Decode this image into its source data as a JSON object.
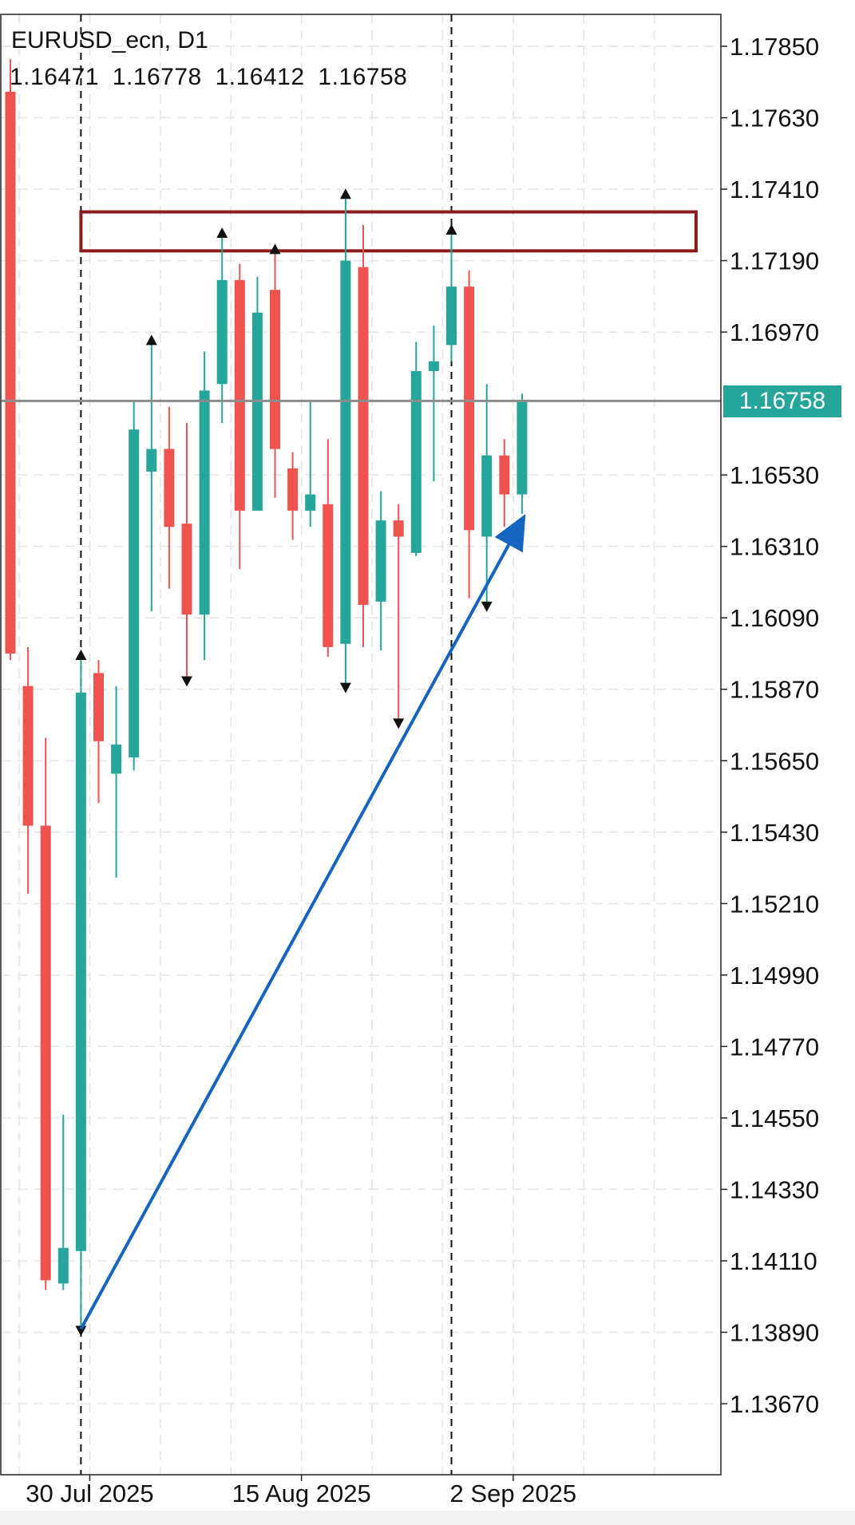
{
  "header": {
    "symbol_title": "EURUSD_ecn, D1",
    "ohlc": [
      "1.16471",
      "1.16778",
      "1.16412",
      "1.16758"
    ]
  },
  "current_price": "1.16758",
  "colors": {
    "bull": "#26a69a",
    "bear": "#ef5350",
    "price_line": "#8c8c8c",
    "zone": "#8b1a1a",
    "arrow": "#1565c0",
    "grid": "#e4e4e4",
    "marker": "#111111"
  },
  "chart_data": {
    "type": "candlestick",
    "title": "EURUSD_ecn, D1",
    "y_ticks": [
      "1.17850",
      "1.17630",
      "1.17410",
      "1.17190",
      "1.16970",
      "1.16530",
      "1.16310",
      "1.16090",
      "1.15870",
      "1.15650",
      "1.15430",
      "1.15210",
      "1.14990",
      "1.14770",
      "1.14550",
      "1.14330",
      "1.14110",
      "1.13890",
      "1.13670"
    ],
    "ylim": [
      1.133,
      1.1795
    ],
    "x_tick_labels": [
      {
        "label": "30 Jul 2025",
        "index": 4.5
      },
      {
        "label": "15 Aug 2025",
        "index": 16.5
      },
      {
        "label": "2 Sep 2025",
        "index": 28.5
      }
    ],
    "candles": [
      {
        "o": 1.1771,
        "h": 1.1781,
        "l": 1.1596,
        "c": 1.1598
      },
      {
        "o": 1.1588,
        "h": 1.16,
        "l": 1.1524,
        "c": 1.1545
      },
      {
        "o": 1.1545,
        "h": 1.1572,
        "l": 1.1402,
        "c": 1.1405
      },
      {
        "o": 1.1404,
        "h": 1.1456,
        "l": 1.1402,
        "c": 1.1415
      },
      {
        "o": 1.1414,
        "h": 1.1597,
        "l": 1.139,
        "c": 1.1586
      },
      {
        "o": 1.1592,
        "h": 1.1596,
        "l": 1.1552,
        "c": 1.1571
      },
      {
        "o": 1.1561,
        "h": 1.1588,
        "l": 1.1529,
        "c": 1.157
      },
      {
        "o": 1.1566,
        "h": 1.1676,
        "l": 1.1562,
        "c": 1.1667
      },
      {
        "o": 1.1654,
        "h": 1.1694,
        "l": 1.1611,
        "c": 1.1661
      },
      {
        "o": 1.1661,
        "h": 1.1674,
        "l": 1.1618,
        "c": 1.1637
      },
      {
        "o": 1.1638,
        "h": 1.1669,
        "l": 1.159,
        "c": 1.161
      },
      {
        "o": 1.161,
        "h": 1.1691,
        "l": 1.1596,
        "c": 1.1679
      },
      {
        "o": 1.1681,
        "h": 1.1727,
        "l": 1.1669,
        "c": 1.1713
      },
      {
        "o": 1.1713,
        "h": 1.1718,
        "l": 1.1624,
        "c": 1.1642
      },
      {
        "o": 1.1642,
        "h": 1.1714,
        "l": 1.1642,
        "c": 1.1703
      },
      {
        "o": 1.171,
        "h": 1.1722,
        "l": 1.1646,
        "c": 1.1661
      },
      {
        "o": 1.1655,
        "h": 1.166,
        "l": 1.1633,
        "c": 1.1642
      },
      {
        "o": 1.1642,
        "h": 1.1676,
        "l": 1.1637,
        "c": 1.1647
      },
      {
        "o": 1.1644,
        "h": 1.1664,
        "l": 1.1597,
        "c": 1.16
      },
      {
        "o": 1.1601,
        "h": 1.1739,
        "l": 1.1588,
        "c": 1.1719
      },
      {
        "o": 1.1717,
        "h": 1.173,
        "l": 1.16,
        "c": 1.1613
      },
      {
        "o": 1.1614,
        "h": 1.1648,
        "l": 1.1599,
        "c": 1.1639
      },
      {
        "o": 1.1639,
        "h": 1.1644,
        "l": 1.1577,
        "c": 1.1634
      },
      {
        "o": 1.1629,
        "h": 1.1694,
        "l": 1.1628,
        "c": 1.1685
      },
      {
        "o": 1.1685,
        "h": 1.1699,
        "l": 1.1651,
        "c": 1.1688
      },
      {
        "o": 1.1693,
        "h": 1.1728,
        "l": 1.1688,
        "c": 1.1711
      },
      {
        "o": 1.1711,
        "h": 1.1716,
        "l": 1.1615,
        "c": 1.1636
      },
      {
        "o": 1.1634,
        "h": 1.1681,
        "l": 1.1613,
        "c": 1.1659
      },
      {
        "o": 1.1659,
        "h": 1.1664,
        "l": 1.1637,
        "c": 1.1647
      },
      {
        "o": 1.1647,
        "h": 1.1678,
        "l": 1.1641,
        "c": 1.1676
      }
    ],
    "fractal_markers": [
      {
        "index": 4,
        "price": 1.1597,
        "dir": "up"
      },
      {
        "index": 4,
        "price": 1.139,
        "dir": "down"
      },
      {
        "index": 8,
        "price": 1.1694,
        "dir": "up"
      },
      {
        "index": 10,
        "price": 1.159,
        "dir": "down"
      },
      {
        "index": 12,
        "price": 1.1727,
        "dir": "up"
      },
      {
        "index": 15,
        "price": 1.1722,
        "dir": "up"
      },
      {
        "index": 19,
        "price": 1.1739,
        "dir": "up"
      },
      {
        "index": 19,
        "price": 1.1588,
        "dir": "down"
      },
      {
        "index": 22,
        "price": 1.1577,
        "dir": "down"
      },
      {
        "index": 25,
        "price": 1.1728,
        "dir": "up"
      },
      {
        "index": 27,
        "price": 1.1613,
        "dir": "down"
      }
    ],
    "vertical_markers": [
      4,
      25
    ],
    "resistance_zone": {
      "start_index": 4,
      "end_index": 39,
      "top": 1.1734,
      "bottom": 1.1722
    },
    "trend_arrow": {
      "from_index": 4,
      "from_price": 1.139,
      "to_index": 29.2,
      "to_price": 1.1641
    },
    "last_price": 1.16758,
    "grid": true
  }
}
